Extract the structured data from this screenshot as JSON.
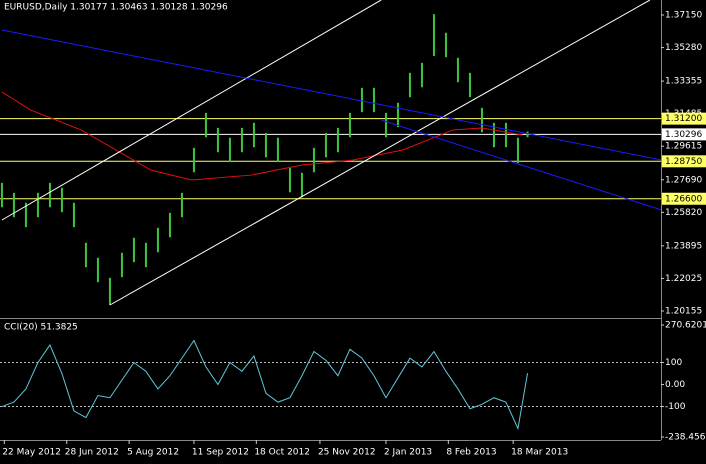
{
  "chart_data": [
    {
      "type": "ohlc",
      "title": "EURUSD,Daily  1.30177 1.30463 1.30128 1.30296",
      "color": "#3cc83c",
      "x": [
        0,
        5,
        10,
        15,
        20,
        25,
        30,
        35,
        40,
        45,
        50,
        55,
        60,
        65,
        70,
        75,
        80,
        85,
        90,
        95,
        100,
        105,
        110,
        115,
        120,
        125,
        130,
        135,
        140,
        145,
        150,
        155,
        160,
        165,
        170,
        175,
        180,
        185,
        190,
        195,
        200,
        205,
        210,
        215,
        219
      ],
      "high": [
        1.2751,
        1.2694,
        1.2637,
        1.2694,
        1.2751,
        1.2723,
        1.2637,
        1.2407,
        1.2321,
        1.2206,
        1.235,
        1.2436,
        1.2407,
        1.2493,
        1.2579,
        1.2694,
        1.2952,
        1.3153,
        1.3067,
        1.301,
        1.3067,
        1.3096,
        1.3038,
        1.301,
        1.2837,
        1.2809,
        1.2952,
        1.3038,
        1.3067,
        1.3153,
        1.3297,
        1.3297,
        1.3153,
        1.3211,
        1.3383,
        1.344,
        1.372,
        1.3613,
        1.3469,
        1.3383,
        1.3182,
        1.3096,
        1.3096,
        1.301,
        1.3046
      ],
      "low": [
        1.2611,
        1.2554,
        1.2497,
        1.2554,
        1.2611,
        1.2583,
        1.2497,
        1.2267,
        1.2181,
        1.205,
        1.221,
        1.2296,
        1.2267,
        1.2353,
        1.2439,
        1.2554,
        1.2812,
        1.3013,
        1.2927,
        1.287,
        1.2927,
        1.2956,
        1.2898,
        1.287,
        1.2697,
        1.2669,
        1.2812,
        1.2898,
        1.2927,
        1.3013,
        1.3157,
        1.3157,
        1.3013,
        1.3071,
        1.3243,
        1.33,
        1.348,
        1.3473,
        1.3329,
        1.3243,
        1.3042,
        1.2956,
        1.2956,
        1.2865,
        1.3013
      ],
      "ma": {
        "color": "#e01010",
        "x": [
          0,
          12,
          33,
          62,
          79,
          104,
          125,
          146,
          167,
          188,
          200,
          217
        ],
        "values": [
          1.3273,
          1.3169,
          1.3055,
          1.2825,
          1.2768,
          1.2796,
          1.2854,
          1.2882,
          1.294,
          1.3055,
          1.3066,
          1.3026
        ]
      },
      "trendlines": [
        {
          "color": "#ffffff",
          "x": [
            45,
            270
          ],
          "values": [
            1.205,
            1.3801
          ]
        },
        {
          "color": "#ffffff",
          "x": [
            0,
            158
          ],
          "values": [
            1.2538,
            1.3801
          ]
        },
        {
          "color": "#1a1aff",
          "x": [
            0,
            275
          ],
          "values": [
            1.3629,
            1.2882
          ]
        },
        {
          "color": "#1a1aff",
          "x": [
            158,
            275
          ],
          "values": [
            1.3112,
            1.2595
          ]
        }
      ],
      "levels": [
        {
          "value": 1.312,
          "label": "1.31200",
          "color": "#ffff66"
        },
        {
          "value": 1.2875,
          "label": "1.28750",
          "color": "#ffff66"
        },
        {
          "value": 1.266,
          "label": "1.26600",
          "color": "#ffff66"
        },
        {
          "value": 1.30296,
          "label": "1.30296",
          "color": "#ffffff"
        }
      ],
      "xlim": [
        -0.8,
        274.6
      ],
      "ylim": [
        1.19811,
        1.38011
      ],
      "yticks": [
        {
          "value": 1.3715,
          "label": "1.37150"
        },
        {
          "value": 1.3528,
          "label": "1.35280"
        },
        1.33355,
        1.31485,
        1.29615,
        {
          "value": 1.2769,
          "label": "1.27690"
        },
        {
          "value": 1.2582,
          "label": "1.25820"
        },
        1.23895,
        1.22025,
        1.20155
      ]
    },
    {
      "type": "line",
      "title": "CCI(20) 51.3825",
      "color": "#5fc8d8",
      "x": [
        0,
        5,
        10,
        15,
        20,
        25,
        30,
        35,
        40,
        45,
        50,
        55,
        60,
        65,
        70,
        75,
        80,
        85,
        90,
        95,
        100,
        105,
        110,
        115,
        120,
        125,
        130,
        135,
        140,
        145,
        150,
        155,
        160,
        165,
        170,
        175,
        180,
        185,
        190,
        195,
        200,
        205,
        210,
        215,
        219
      ],
      "values": [
        -100,
        -80,
        -20,
        100,
        180,
        50,
        -120,
        -150,
        -50,
        -60,
        20,
        100,
        60,
        -20,
        40,
        120,
        200,
        80,
        0,
        100,
        60,
        130,
        -40,
        -80,
        -60,
        40,
        150,
        110,
        40,
        160,
        120,
        40,
        -60,
        30,
        120,
        80,
        150,
        60,
        -20,
        -110,
        -90,
        -60,
        -80,
        -200,
        51.3825
      ],
      "levels": [
        100,
        -100
      ],
      "xlim": [
        -0.8,
        274.6
      ],
      "ylim": [
        -252.1,
        293.3
      ],
      "yticks": [
        270.6201,
        100,
        {
          "value": 0,
          "label": "0.00"
        },
        -100,
        -238.4566
      ],
      "xticks": [
        {
          "value": 1,
          "label": "22 May 2012"
        },
        {
          "value": 27,
          "label": "28 Jun 2012"
        },
        {
          "value": 53,
          "label": "5 Aug 2012"
        },
        {
          "value": 80,
          "label": "11 Sep 2012"
        },
        {
          "value": 106,
          "label": "18 Oct 2012"
        },
        {
          "value": 132.5,
          "label": "25 Nov 2012"
        },
        {
          "value": 160,
          "label": "2 Jan 2013"
        },
        {
          "value": 186,
          "label": "8 Feb 2013"
        },
        {
          "value": 213,
          "label": "18 Mar 2013"
        }
      ]
    }
  ]
}
